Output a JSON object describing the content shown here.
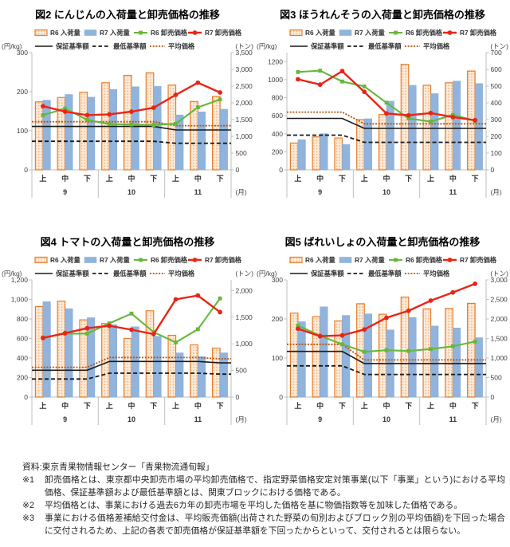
{
  "page": {
    "footnotes": [
      {
        "marker": "資料:",
        "text": "東京青果物情報センター「青果物流通旬報」"
      },
      {
        "marker": "※1",
        "text": "卸売価格とは、東京都中央卸売市場の平均卸売価格で、指定野菜価格安定対策事業(以下「事業」という)における平均価格、保証基準額および最低基準額とは、関東ブロックにおける価格である。"
      },
      {
        "marker": "※2",
        "text": "平均価格とは、事業における過去6カ年の卸売市場を平均した価格を基に物価指数等を加味した価格である。"
      },
      {
        "marker": "※3",
        "text": "事業における価格差補給交付金は、平均販売価額(出荷された野菜の旬別およびブロック別の平均価額)を下回った場合に交付されるため、上記の各表で卸売価格が保証基準額を下回ったからといって、交付されるとは限らない。"
      }
    ]
  },
  "colors": {
    "r6_bar_fill": "#FCEBD9",
    "r6_bar_dot": "#F3B27C",
    "r6_bar_border": "#E87E2D",
    "r7_bar_fill": "#90B4DD",
    "r7_bar_border": "#84A9D4",
    "r6_line": "#65B83C",
    "r7_line": "#E92517",
    "guarantee_line": "#1A1A1A",
    "minimum_line": "#1A1A1A",
    "average_line": "#B5520E",
    "axis": "#BFBFBF",
    "tick_text": "#404040"
  },
  "chart_data": [
    {
      "type": "bar+line",
      "title": "図2 にんじんの入荷量と卸売価格の推移",
      "categories": [
        "上",
        "中",
        "下",
        "上",
        "中",
        "下",
        "上",
        "中",
        "下"
      ],
      "months": [
        "9",
        "10",
        "11"
      ],
      "x_unit": "(月)",
      "left_axis": {
        "unit": "(円/kg)",
        "tick_step": 100,
        "plot_top": 300,
        "tick_labels": [
          "0",
          "100",
          "200",
          "300"
        ]
      },
      "right_axis": {
        "unit": "(トン)",
        "tick_step": 500,
        "plot_top": 3500,
        "tick_labels": [
          "0",
          "500",
          "1,000",
          "1,500",
          "2,000",
          "2,500",
          "3,000",
          "3,500"
        ]
      },
      "series": {
        "r6_bars": {
          "label": "R6 入荷量",
          "values": [
            2030,
            2160,
            2320,
            2600,
            2820,
            2900,
            2530,
            2040,
            2190
          ]
        },
        "r7_bars": {
          "label": "R7 入荷量",
          "values": [
            2080,
            2250,
            2170,
            2400,
            2480,
            2490,
            1640,
            1730,
            1810
          ]
        },
        "r6_price": {
          "label": "R6 卸売価格",
          "values": [
            140,
            157,
            128,
            117,
            116,
            115,
            118,
            160,
            180
          ]
        },
        "r7_price": {
          "label": "R7 卸売価格",
          "values": [
            163,
            149,
            140,
            142,
            149,
            159,
            192,
            223,
            198
          ]
        },
        "guarantee": {
          "label": "保証基準額",
          "values": [
            111,
            111,
            111,
            111,
            111,
            111,
            102,
            102,
            102
          ]
        },
        "minimum": {
          "label": "最低基準額",
          "values": [
            73,
            73,
            73,
            73,
            73,
            73,
            68,
            68,
            68
          ]
        },
        "average": {
          "label": "平均価格",
          "values": [
            123,
            123,
            123,
            123,
            123,
            123,
            113,
            113,
            113
          ]
        }
      }
    },
    {
      "type": "bar+line",
      "title": "図3 ほうれんそうの入荷量と卸売価格の推移",
      "categories": [
        "上",
        "中",
        "下",
        "上",
        "中",
        "下",
        "上",
        "中",
        "下"
      ],
      "months": [
        "9",
        "10",
        "11"
      ],
      "x_unit": "(月)",
      "left_axis": {
        "unit": "(円/kg)",
        "tick_step": 200,
        "plot_top": 1300,
        "tick_labels": [
          "0",
          "200",
          "400",
          "600",
          "800",
          "1000",
          "1200"
        ]
      },
      "right_axis": {
        "unit": "(トン)",
        "tick_step": 100,
        "plot_top": 700,
        "tick_labels": [
          "0",
          "100",
          "200",
          "300",
          "400",
          "500",
          "600",
          "700"
        ]
      },
      "series": {
        "r6_bars": {
          "label": "R6 入荷量",
          "values": [
            160,
            197,
            190,
            300,
            330,
            630,
            505,
            520,
            590
          ]
        },
        "r7_bars": {
          "label": "R7 入荷量",
          "values": [
            180,
            216,
            151,
            305,
            410,
            505,
            455,
            530,
            515
          ]
        },
        "r6_price": {
          "label": "R6 卸売価格",
          "values": [
            1085,
            1100,
            980,
            925,
            745,
            570,
            535,
            610,
            545
          ]
        },
        "r7_price": {
          "label": "R7 卸売価格",
          "values": [
            1005,
            945,
            1095,
            865,
            625,
            605,
            630,
            585,
            550
          ]
        },
        "guarantee": {
          "label": "保証基準額",
          "values": [
            570,
            570,
            570,
            460,
            460,
            460,
            460,
            460,
            460
          ]
        },
        "minimum": {
          "label": "最低基準額",
          "values": [
            385,
            385,
            385,
            305,
            305,
            305,
            305,
            305,
            305
          ]
        },
        "average": {
          "label": "平均価格",
          "values": [
            640,
            640,
            640,
            510,
            510,
            510,
            510,
            510,
            510
          ]
        }
      }
    },
    {
      "type": "bar+line",
      "title": "図4 トマトの入荷量と卸売価格の推移",
      "categories": [
        "上",
        "中",
        "下",
        "上",
        "中",
        "下",
        "上",
        "中",
        "下"
      ],
      "months": [
        "9",
        "10",
        "11"
      ],
      "x_unit": "(月)",
      "left_axis": {
        "unit": "(円/kg)",
        "tick_step": 200,
        "plot_top": 1200,
        "tick_labels": [
          "0",
          "200",
          "400",
          "600",
          "800",
          "1,000",
          "1,200"
        ]
      },
      "right_axis": {
        "unit": "(トン)",
        "tick_step": 500,
        "plot_top": 2200,
        "tick_labels": [
          "0",
          "500",
          "1,000",
          "1,500",
          "2,000"
        ]
      },
      "series": {
        "r6_bars": {
          "label": "R6 入荷量",
          "values": [
            1700,
            1800,
            1450,
            1380,
            1100,
            1620,
            1160,
            980,
            920
          ]
        },
        "r7_bars": {
          "label": "R7 入荷量",
          "values": [
            1790,
            1660,
            1490,
            1360,
            1320,
            1140,
            830,
            760,
            830
          ]
        },
        "r6_price": {
          "label": "R6 卸売価格",
          "values": [
            610,
            650,
            650,
            755,
            855,
            665,
            560,
            695,
            1010
          ]
        },
        "r7_price": {
          "label": "R7 卸売価格",
          "values": [
            605,
            655,
            705,
            730,
            690,
            645,
            1000,
            1040,
            870
          ]
        },
        "guarantee": {
          "label": "保証基準額",
          "values": [
            275,
            275,
            275,
            365,
            365,
            365,
            365,
            365,
            350
          ]
        },
        "minimum": {
          "label": "最低基準額",
          "values": [
            185,
            185,
            185,
            245,
            245,
            245,
            245,
            245,
            235
          ]
        },
        "average": {
          "label": "平均価格",
          "values": [
            305,
            305,
            305,
            405,
            405,
            405,
            405,
            405,
            392
          ]
        }
      }
    },
    {
      "type": "bar+line",
      "title": "図5 ばれいしょの入荷量と卸売価格の推移",
      "categories": [
        "上",
        "中",
        "下",
        "上",
        "中",
        "下",
        "上",
        "中",
        "下"
      ],
      "months": [
        "9",
        "10",
        "11"
      ],
      "x_unit": "(月)",
      "left_axis": {
        "unit": "(円/kg)",
        "tick_step": 100,
        "plot_top": 300,
        "tick_labels": [
          "0",
          "100",
          "200",
          "300"
        ]
      },
      "right_axis": {
        "unit": "(トン)",
        "tick_step": 500,
        "plot_top": 3000,
        "tick_labels": [
          "0",
          "500",
          "1,000",
          "1,500",
          "2,000",
          "2,500",
          "3,000"
        ]
      },
      "series": {
        "r6_bars": {
          "label": "R6 入荷量",
          "values": [
            2150,
            2060,
            1950,
            2390,
            2120,
            2560,
            2260,
            2270,
            2400
          ]
        },
        "r7_bars": {
          "label": "R7 入荷量",
          "values": [
            1930,
            2310,
            2090,
            2130,
            1720,
            2040,
            1820,
            1770,
            1520
          ]
        },
        "r6_price": {
          "label": "R6 卸売価格",
          "values": [
            183,
            157,
            135,
            116,
            120,
            118,
            123,
            130,
            142
          ]
        },
        "r7_price": {
          "label": "R7 卸売価格",
          "values": [
            175,
            156,
            158,
            173,
            203,
            221,
            247,
            268,
            290
          ]
        },
        "guarantee": {
          "label": "保証基準額",
          "values": [
            117,
            117,
            117,
            86,
            86,
            86,
            86,
            86,
            86
          ]
        },
        "minimum": {
          "label": "最低基準額",
          "values": [
            80,
            80,
            80,
            58,
            58,
            58,
            58,
            58,
            58
          ]
        },
        "average": {
          "label": "平均価格",
          "values": [
            135,
            135,
            135,
            95,
            95,
            95,
            95,
            95,
            95
          ]
        }
      }
    }
  ]
}
